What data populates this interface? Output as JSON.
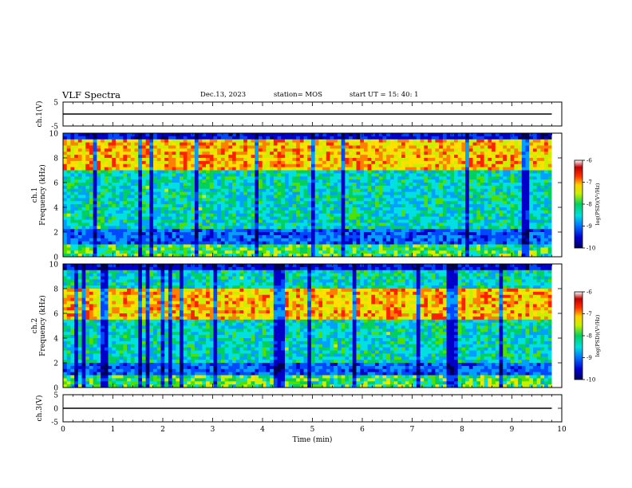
{
  "header": {
    "title": "VLF Spectra",
    "date": "Dec.13, 2023",
    "station": "station= MOS",
    "start": "start  UT =   15: 40: 1"
  },
  "chart_data": [
    {
      "type": "line",
      "panel": "top waveform",
      "ylabel": "ch.1(V)",
      "ylim": [
        -5,
        5
      ],
      "yticks": [
        "5",
        "-5"
      ],
      "x": [
        0,
        9.8
      ],
      "values": [
        0,
        0
      ],
      "xlim": [
        0,
        10
      ]
    },
    {
      "type": "heatmap",
      "panel": "ch.1 spectrogram",
      "ylabel": "ch.1 Frequency (kHz)",
      "ylim": [
        0,
        10
      ],
      "yticks": [
        "0",
        "2",
        "4",
        "6",
        "8",
        "10"
      ],
      "xlim": [
        0,
        10
      ],
      "data_xmax": 9.8,
      "colorbar": {
        "label": "log(PSD)(V²/Hz)",
        "range": [
          -10,
          -6
        ],
        "ticks": [
          "-6",
          "-7",
          "-8",
          "-9",
          "-10"
        ]
      },
      "intense_band_khz": [
        7,
        9.5
      ],
      "quiet_bands_khz": [
        [
          1,
          2.3
        ]
      ]
    },
    {
      "type": "heatmap",
      "panel": "ch.2 spectrogram",
      "ylabel": "ch.2 Frequency (kHz)",
      "ylim": [
        0,
        10
      ],
      "yticks": [
        "0",
        "2",
        "4",
        "6",
        "8",
        "10"
      ],
      "xlim": [
        0,
        10
      ],
      "data_xmax": 9.8,
      "colorbar": {
        "label": "log(PSD)(V²/Hz)",
        "range": [
          -10,
          -6
        ],
        "ticks": [
          "-6",
          "-7",
          "-8",
          "-9",
          "-10"
        ]
      },
      "intense_band_khz": [
        5.5,
        8
      ],
      "quiet_bands_khz": [
        [
          1,
          2
        ]
      ]
    },
    {
      "type": "line",
      "panel": "bottom waveform",
      "ylabel": "ch.3(V)",
      "ylim": [
        -5,
        5
      ],
      "yticks": [
        "5",
        "0",
        "-5"
      ],
      "x": [
        0,
        9.8
      ],
      "values": [
        0,
        0
      ],
      "xlim": [
        0,
        10
      ],
      "xlabel": "Time (min)",
      "xticks": [
        "0",
        "1",
        "2",
        "3",
        "4",
        "5",
        "6",
        "7",
        "8",
        "9",
        "10"
      ]
    }
  ],
  "colors": {
    "spectrum": [
      "#000050",
      "#0000c8",
      "#0048ff",
      "#00a0ff",
      "#00e0e0",
      "#00d060",
      "#50e000",
      "#c8f000",
      "#ffe000",
      "#ff8000",
      "#ff2000",
      "#b40000",
      "#ffffff"
    ]
  }
}
